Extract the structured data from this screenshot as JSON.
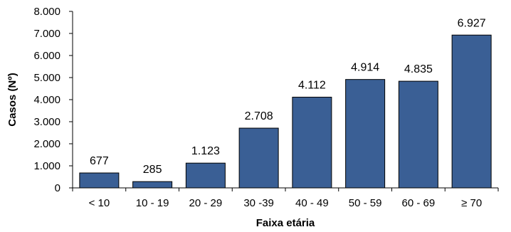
{
  "chart_data": {
    "type": "bar",
    "categories": [
      "< 10",
      "10 - 19",
      "20 - 29",
      "30 -39",
      "40 - 49",
      "50 - 59",
      "60 - 69",
      "≥ 70"
    ],
    "values": [
      677,
      285,
      1123,
      2708,
      4112,
      4914,
      4835,
      6927
    ],
    "value_labels": [
      "677",
      "285",
      "1.123",
      "2.708",
      "4.112",
      "4.914",
      "4.835",
      "6.927"
    ],
    "xlabel": "Faixa etária",
    "ylabel": "Casos (Nº)",
    "ylim": [
      0,
      8000
    ],
    "yticks": [
      0,
      1000,
      2000,
      3000,
      4000,
      5000,
      6000,
      7000,
      8000
    ],
    "ytick_labels": [
      "0",
      "1.000",
      "2.000",
      "3.000",
      "4.000",
      "5.000",
      "6.000",
      "7.000",
      "8.000"
    ],
    "grid": false,
    "legend": "none",
    "bar_color": "#3A5F95"
  }
}
